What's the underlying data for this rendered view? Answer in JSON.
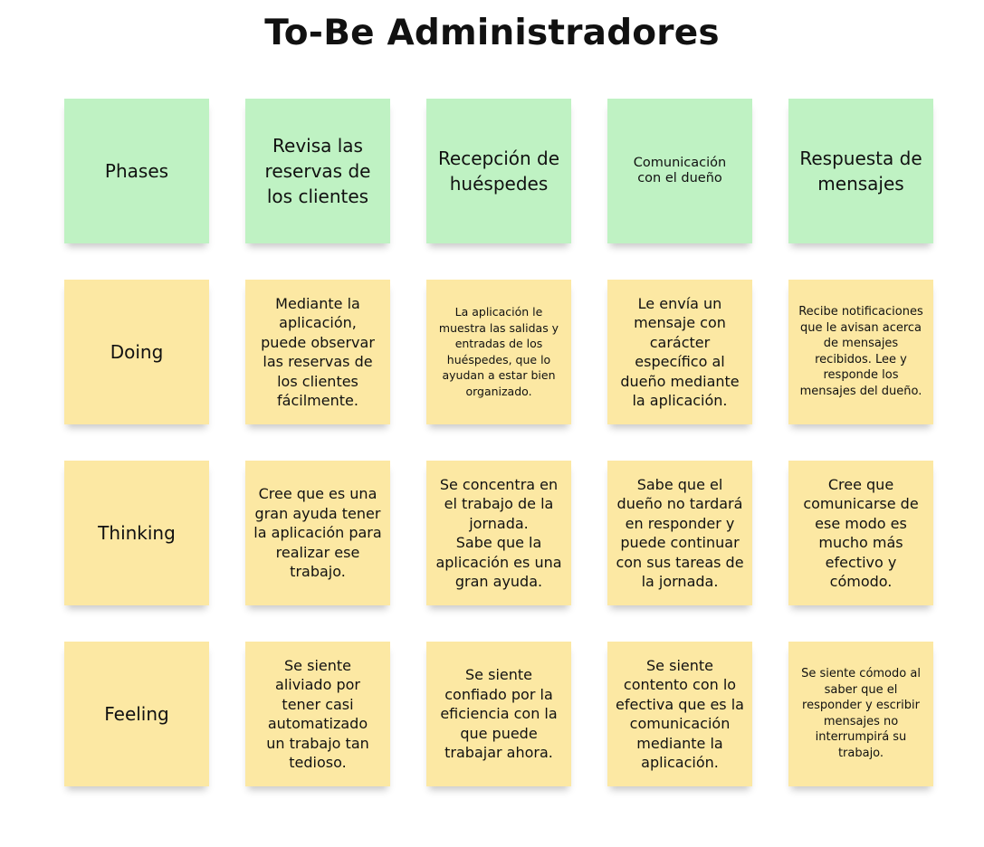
{
  "title": "To-Be Administradores",
  "colors": {
    "phase_note": "#bff2c3",
    "content_note": "#fce8a3"
  },
  "rows": [
    {
      "label": "Phases",
      "cells": [
        "Revisa las reservas de los clientes",
        "Recepción de huéspedes",
        "Comunicación con el dueño",
        "Respuesta de mensajes"
      ]
    },
    {
      "label": "Doing",
      "cells": [
        "Mediante la aplicación, puede observar las reservas de los clientes fácilmente.",
        "La aplicación le muestra las salidas y entradas de los huéspedes, que lo ayudan a estar bien organizado.",
        "Le envía un mensaje con carácter específico al dueño mediante la aplicación.",
        "Recibe notificaciones que le avisan acerca de mensajes recibidos. Lee y responde los mensajes del dueño."
      ]
    },
    {
      "label": "Thinking",
      "cells": [
        "Cree que es una gran ayuda tener la aplicación para realizar ese trabajo.",
        "Se concentra en el trabajo de la jornada.\nSabe que la aplicación es una gran ayuda.",
        "Sabe que el dueño no tardará en responder y puede continuar con sus tareas de la jornada.",
        "Cree que comunicarse de ese modo es mucho más efectivo y cómodo."
      ]
    },
    {
      "label": "Feeling",
      "cells": [
        "Se siente aliviado por tener casi automatizado un trabajo tan tedioso.",
        "Se siente confiado por la eficiencia con la que puede trabajar ahora.",
        "Se siente contento con lo efectiva que es la comunicación mediante la aplicación.",
        "Se siente cómodo al saber que el responder y escribir mensajes no interrumpirá su trabajo."
      ]
    }
  ]
}
